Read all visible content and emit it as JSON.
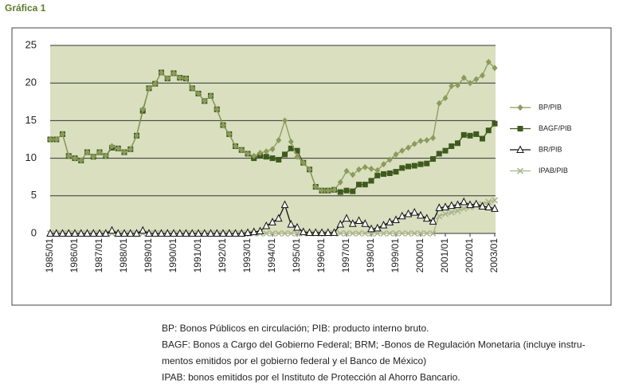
{
  "chart_data": {
    "type": "line",
    "title": "Gráfica 1",
    "categories": [
      "1985/01",
      null,
      null,
      null,
      "1986/01",
      null,
      null,
      null,
      "1987/01",
      null,
      null,
      null,
      "1988/01",
      null,
      null,
      null,
      "1989/01",
      null,
      null,
      null,
      "1990/01",
      null,
      null,
      null,
      "1991/01",
      null,
      null,
      null,
      "1992/01",
      null,
      null,
      null,
      "1993/01",
      null,
      null,
      null,
      "1994/01",
      null,
      null,
      null,
      "1995/01",
      null,
      null,
      null,
      "1996/01",
      null,
      null,
      null,
      "1997/01",
      null,
      null,
      null,
      "1998/01",
      null,
      null,
      null,
      "1999/01",
      null,
      null,
      null,
      "2000/01",
      null,
      null,
      null,
      "2001/01",
      null,
      null,
      null,
      "2002/01",
      null,
      null,
      null,
      "2003/01"
    ],
    "series": [
      {
        "name": "BP/PIB",
        "color": "#8c9a5a",
        "marker": "diamond",
        "values": [
          12.5,
          12.5,
          13.2,
          10.3,
          10.0,
          9.7,
          10.8,
          10.2,
          10.8,
          10.3,
          11.6,
          11.3,
          10.8,
          11.2,
          13.0,
          16.5,
          19.3,
          19.9,
          21.4,
          20.6,
          21.3,
          20.7,
          20.6,
          19.3,
          18.6,
          17.6,
          18.3,
          16.5,
          14.4,
          13.2,
          11.6,
          11.1,
          10.6,
          10.3,
          10.7,
          10.9,
          11.2,
          12.4,
          15.0,
          12.2,
          10.2,
          9.4,
          8.5,
          6.2,
          5.7,
          5.7,
          5.8,
          6.8,
          8.3,
          7.8,
          8.5,
          8.8,
          8.6,
          8.4,
          9.2,
          9.8,
          10.5,
          11.0,
          11.4,
          11.9,
          12.3,
          12.4,
          12.7,
          17.3,
          18.0,
          19.6,
          19.7,
          20.7,
          20.0,
          20.5,
          21.0,
          22.8,
          22.0
        ]
      },
      {
        "name": "BAGF/PIB",
        "color": "#3f5a1e",
        "marker": "square",
        "values": [
          12.5,
          12.5,
          13.2,
          10.3,
          10.0,
          9.7,
          10.8,
          10.2,
          10.8,
          10.3,
          11.4,
          11.3,
          10.8,
          11.2,
          13.0,
          16.3,
          19.3,
          19.9,
          21.4,
          20.6,
          21.3,
          20.7,
          20.6,
          19.3,
          18.6,
          17.6,
          18.3,
          16.5,
          14.4,
          13.2,
          11.6,
          11.1,
          10.6,
          10.0,
          10.4,
          10.2,
          10.0,
          9.8,
          10.5,
          11.3,
          11.0,
          9.4,
          8.5,
          6.2,
          5.7,
          5.7,
          5.8,
          5.5,
          5.7,
          5.6,
          6.5,
          6.5,
          7.0,
          7.7,
          7.9,
          8.0,
          8.2,
          8.7,
          8.9,
          9.0,
          9.2,
          9.3,
          9.9,
          10.6,
          11.0,
          11.6,
          12.0,
          13.1,
          13.0,
          13.2,
          12.6,
          13.7,
          14.6
        ]
      },
      {
        "name": "BR/PIB",
        "color": "#111111",
        "marker": "triangle",
        "values": [
          0,
          0,
          0,
          0,
          0,
          0,
          0,
          0,
          0,
          0,
          0.4,
          0,
          0,
          0,
          0,
          0.4,
          0,
          0,
          0,
          0,
          0,
          0,
          0,
          0,
          0,
          0,
          0,
          0,
          0,
          0,
          0,
          0,
          0.1,
          0.2,
          0.3,
          1.0,
          1.5,
          2.0,
          3.8,
          1.2,
          0.8,
          0.2,
          0.1,
          0.1,
          0.1,
          0.1,
          0.1,
          1.2,
          2.0,
          1.3,
          1.7,
          1.3,
          0.6,
          0.7,
          1.1,
          1.5,
          1.8,
          2.3,
          2.6,
          2.8,
          2.4,
          2.0,
          1.6,
          3.4,
          3.5,
          3.7,
          3.8,
          4.2,
          3.8,
          3.9,
          3.6,
          3.5,
          3.3
        ]
      },
      {
        "name": "IPAB/PIB",
        "color": "#a9b48a",
        "marker": "x",
        "values": [
          0,
          0,
          0,
          0,
          0,
          0,
          0,
          0,
          0,
          0,
          0,
          0,
          0,
          0,
          0,
          0,
          0,
          0,
          0,
          0,
          0,
          0,
          0,
          0,
          0,
          0,
          0,
          0,
          0,
          0,
          0,
          0,
          0,
          0,
          0,
          0,
          0,
          0,
          0,
          0,
          0,
          0,
          0,
          0,
          0,
          0,
          0,
          0,
          0,
          0,
          0,
          0,
          0,
          0,
          0,
          0,
          0,
          0,
          0,
          0,
          0,
          0,
          0,
          2.3,
          2.6,
          2.8,
          3.0,
          3.3,
          3.5,
          3.7,
          3.9,
          4.2,
          4.4
        ]
      }
    ],
    "ylim": [
      0,
      25
    ],
    "yticks": [
      0,
      5,
      10,
      15,
      20,
      25
    ],
    "grid": true,
    "legend": "right",
    "notes": [
      "BP: Bonos Públicos en circulación; PIB: producto interno bruto.",
      "BAGF: Bonos a Cargo del Gobierno Federal; BRM; -Bonos de Regulación Monetaria (incluye instru-",
      "mentos emitidos por el gobierno federal y el Banco de México)",
      "IPAB: bonos emitidos por el Instituto de Protección al Ahorro Bancario."
    ]
  }
}
